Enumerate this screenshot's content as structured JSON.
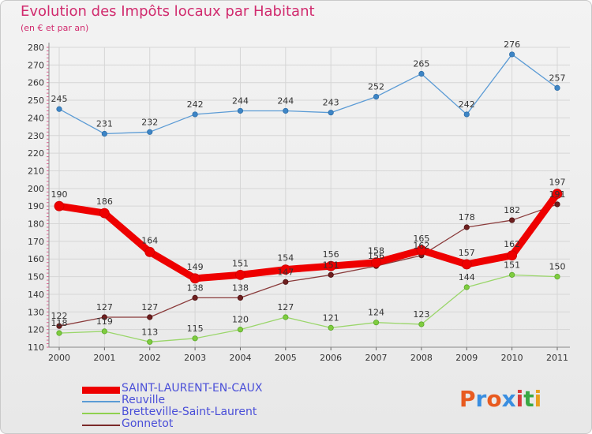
{
  "header": {
    "title": "Evolution des Impôts locaux par Habitant",
    "subtitle": "(en € et par an)"
  },
  "logo": {
    "letters": [
      "P",
      "r",
      "o",
      "x",
      "i",
      "t",
      "i"
    ],
    "colors": [
      "#e85a1f",
      "#3a8ee0",
      "#e85a1f",
      "#3a8ee0",
      "#d83c3c",
      "#3aa844",
      "#e8a11f"
    ]
  },
  "chart_data": {
    "type": "line",
    "title": "Evolution des Impôts locaux par Habitant",
    "subtitle": "(en € et par an)",
    "xlabel": "",
    "ylabel": "",
    "x": [
      "2000",
      "2001",
      "2002",
      "2003",
      "2004",
      "2005",
      "2006",
      "2007",
      "2008",
      "2009",
      "2010",
      "2011"
    ],
    "ylim": [
      110,
      280
    ],
    "yticks": [
      110,
      120,
      130,
      140,
      150,
      160,
      170,
      180,
      190,
      200,
      210,
      220,
      230,
      240,
      250,
      260,
      270,
      280
    ],
    "legend_position": "bottom-left",
    "series": [
      {
        "name": "SAINT-LAURENT-EN-CAUX",
        "color": "#ee0000",
        "values": [
          190,
          186,
          164,
          149,
          151,
          154,
          156,
          158,
          165,
          157,
          162,
          197
        ]
      },
      {
        "name": "Reuville",
        "color": "#5b9bd5",
        "values": [
          245,
          231,
          232,
          242,
          244,
          244,
          243,
          252,
          265,
          242,
          276,
          257
        ]
      },
      {
        "name": "Bretteville-Saint-Laurent",
        "color": "#8fd14f",
        "values": [
          118,
          119,
          113,
          115,
          120,
          127,
          121,
          124,
          123,
          144,
          151,
          150
        ]
      },
      {
        "name": "Gonnetot",
        "color": "#7b2a2a",
        "values": [
          122,
          127,
          127,
          138,
          138,
          147,
          151,
          156,
          162,
          178,
          182,
          191
        ]
      }
    ]
  }
}
